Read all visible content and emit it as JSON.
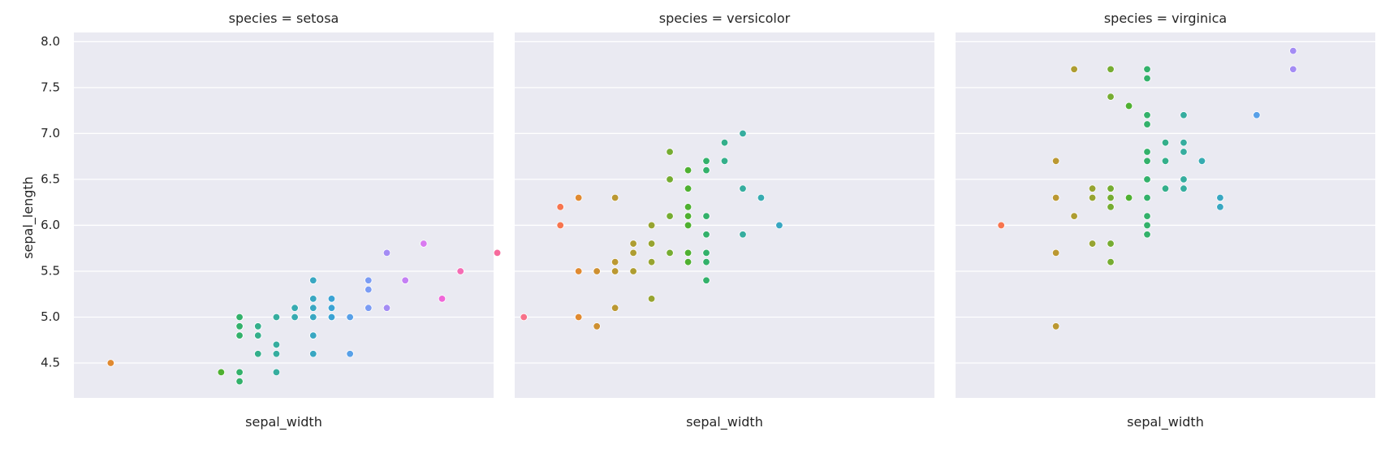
{
  "chart_data": {
    "type": "scatter",
    "ylabel": "sepal_length",
    "ylim": [
      4.12,
      8.1
    ],
    "yticks": [
      4.5,
      5.0,
      5.5,
      6.0,
      6.5,
      7.0,
      7.5,
      8.0
    ],
    "hue_colors": {
      "2.0": "#f77189",
      "2.2": "#f7754f",
      "2.3": "#e08a31",
      "2.4": "#ce9032",
      "2.5": "#bb9832",
      "2.6": "#ae9d31",
      "2.7": "#97a431",
      "2.8": "#76ac32",
      "2.9": "#4fb031",
      "3.0": "#33b16b",
      "3.1": "#34af8b",
      "3.2": "#36ad9f",
      "3.3": "#37abb1",
      "3.4": "#39a7c2",
      "3.5": "#3ba3d4",
      "3.6": "#58a0e8",
      "3.7": "#7b9cf4",
      "3.8": "#a48cf4",
      "3.9": "#c480f4",
      "4.0": "#d97af0",
      "4.1": "#f067d8",
      "4.2": "#f56cb4",
      "4.4": "#f66a9c"
    },
    "panels": [
      {
        "title": "species = setosa",
        "xlabel": "sepal_width",
        "xlim": [
          2.1,
          4.38
        ],
        "points": [
          [
            2.3,
            4.5
          ],
          [
            2.9,
            4.4
          ],
          [
            3.0,
            4.8
          ],
          [
            3.0,
            4.8
          ],
          [
            3.0,
            4.3
          ],
          [
            3.0,
            5.0
          ],
          [
            3.0,
            4.4
          ],
          [
            3.0,
            4.9
          ],
          [
            3.0,
            4.9
          ],
          [
            3.1,
            4.9
          ],
          [
            3.1,
            4.8
          ],
          [
            3.1,
            4.9
          ],
          [
            3.1,
            4.6
          ],
          [
            3.1,
            4.9
          ],
          [
            3.2,
            4.7
          ],
          [
            3.2,
            4.4
          ],
          [
            3.2,
            4.6
          ],
          [
            3.2,
            5.0
          ],
          [
            3.3,
            5.0
          ],
          [
            3.3,
            5.1
          ],
          [
            3.4,
            4.8
          ],
          [
            3.4,
            4.8
          ],
          [
            3.4,
            5.0
          ],
          [
            3.4,
            5.4
          ],
          [
            3.4,
            5.4
          ],
          [
            3.4,
            4.6
          ],
          [
            3.4,
            5.0
          ],
          [
            3.4,
            5.2
          ],
          [
            3.4,
            5.1
          ],
          [
            3.5,
            5.0
          ],
          [
            3.5,
            5.1
          ],
          [
            3.5,
            5.2
          ],
          [
            3.5,
            5.1
          ],
          [
            3.6,
            5.0
          ],
          [
            3.6,
            4.6
          ],
          [
            3.7,
            5.1
          ],
          [
            3.7,
            5.4
          ],
          [
            3.7,
            5.3
          ],
          [
            3.8,
            5.1
          ],
          [
            3.8,
            5.7
          ],
          [
            3.8,
            5.1
          ],
          [
            3.9,
            5.4
          ],
          [
            3.9,
            5.4
          ],
          [
            4.0,
            5.8
          ],
          [
            4.1,
            5.2
          ],
          [
            4.2,
            5.5
          ],
          [
            4.4,
            5.7
          ],
          [
            3.2,
            4.7
          ],
          [
            3.5,
            5.0
          ],
          [
            3.4,
            5.4
          ]
        ]
      },
      {
        "title": "species = versicolor",
        "xlabel": "sepal_width",
        "xlim": [
          1.95,
          4.25
        ],
        "points": [
          [
            2.0,
            5.0
          ],
          [
            2.2,
            6.0
          ],
          [
            2.2,
            6.2
          ],
          [
            2.3,
            5.0
          ],
          [
            2.3,
            5.5
          ],
          [
            2.3,
            6.3
          ],
          [
            2.4,
            5.5
          ],
          [
            2.4,
            4.9
          ],
          [
            2.4,
            5.5
          ],
          [
            2.5,
            5.1
          ],
          [
            2.5,
            5.5
          ],
          [
            2.5,
            5.6
          ],
          [
            2.5,
            6.3
          ],
          [
            2.6,
            5.5
          ],
          [
            2.6,
            5.7
          ],
          [
            2.6,
            5.8
          ],
          [
            2.7,
            5.2
          ],
          [
            2.7,
            5.6
          ],
          [
            2.7,
            5.8
          ],
          [
            2.7,
            6.0
          ],
          [
            2.7,
            5.8
          ],
          [
            2.8,
            5.7
          ],
          [
            2.8,
            6.1
          ],
          [
            2.8,
            6.5
          ],
          [
            2.8,
            6.8
          ],
          [
            2.9,
            5.7
          ],
          [
            2.9,
            6.1
          ],
          [
            2.9,
            6.2
          ],
          [
            2.9,
            6.4
          ],
          [
            2.9,
            6.6
          ],
          [
            2.9,
            5.6
          ],
          [
            2.9,
            6.0
          ],
          [
            3.0,
            5.9
          ],
          [
            3.0,
            5.4
          ],
          [
            3.0,
            5.6
          ],
          [
            3.0,
            6.1
          ],
          [
            3.0,
            6.6
          ],
          [
            3.0,
            5.7
          ],
          [
            3.0,
            6.7
          ],
          [
            3.1,
            6.7
          ],
          [
            3.1,
            6.9
          ],
          [
            3.2,
            5.9
          ],
          [
            3.2,
            6.4
          ],
          [
            3.2,
            7.0
          ],
          [
            3.3,
            6.3
          ],
          [
            3.4,
            6.0
          ],
          [
            3.0,
            5.7
          ],
          [
            2.9,
            6.1
          ],
          [
            2.9,
            5.7
          ],
          [
            2.8,
            5.7
          ]
        ]
      },
      {
        "title": "species = virginica",
        "xlabel": "sepal_width",
        "xlim": [
          1.95,
          4.25
        ],
        "points": [
          [
            2.2,
            6.0
          ],
          [
            2.5,
            4.9
          ],
          [
            2.5,
            5.7
          ],
          [
            2.5,
            6.3
          ],
          [
            2.5,
            6.7
          ],
          [
            2.6,
            6.1
          ],
          [
            2.6,
            7.7
          ],
          [
            2.7,
            5.8
          ],
          [
            2.7,
            5.8
          ],
          [
            2.7,
            6.3
          ],
          [
            2.7,
            6.4
          ],
          [
            2.8,
            6.4
          ],
          [
            2.8,
            6.3
          ],
          [
            2.8,
            6.4
          ],
          [
            2.8,
            5.6
          ],
          [
            2.8,
            6.2
          ],
          [
            2.8,
            7.4
          ],
          [
            2.8,
            7.7
          ],
          [
            2.8,
            5.8
          ],
          [
            2.9,
            6.3
          ],
          [
            2.9,
            7.3
          ],
          [
            3.0,
            6.5
          ],
          [
            3.0,
            7.1
          ],
          [
            3.0,
            6.7
          ],
          [
            3.0,
            6.0
          ],
          [
            3.0,
            6.1
          ],
          [
            3.0,
            6.8
          ],
          [
            3.0,
            7.2
          ],
          [
            3.0,
            7.6
          ],
          [
            3.0,
            7.7
          ],
          [
            3.0,
            5.9
          ],
          [
            3.0,
            6.5
          ],
          [
            3.1,
            6.7
          ],
          [
            3.1,
            6.9
          ],
          [
            3.1,
            6.4
          ],
          [
            3.1,
            6.9
          ],
          [
            3.2,
            6.9
          ],
          [
            3.2,
            6.8
          ],
          [
            3.2,
            7.2
          ],
          [
            3.2,
            6.4
          ],
          [
            3.2,
            6.5
          ],
          [
            3.3,
            6.7
          ],
          [
            3.3,
            6.7
          ],
          [
            3.4,
            6.2
          ],
          [
            3.4,
            6.3
          ],
          [
            3.6,
            7.2
          ],
          [
            3.8,
            7.7
          ],
          [
            3.8,
            7.9
          ],
          [
            3.0,
            6.3
          ],
          [
            2.5,
            6.3
          ]
        ]
      }
    ]
  }
}
